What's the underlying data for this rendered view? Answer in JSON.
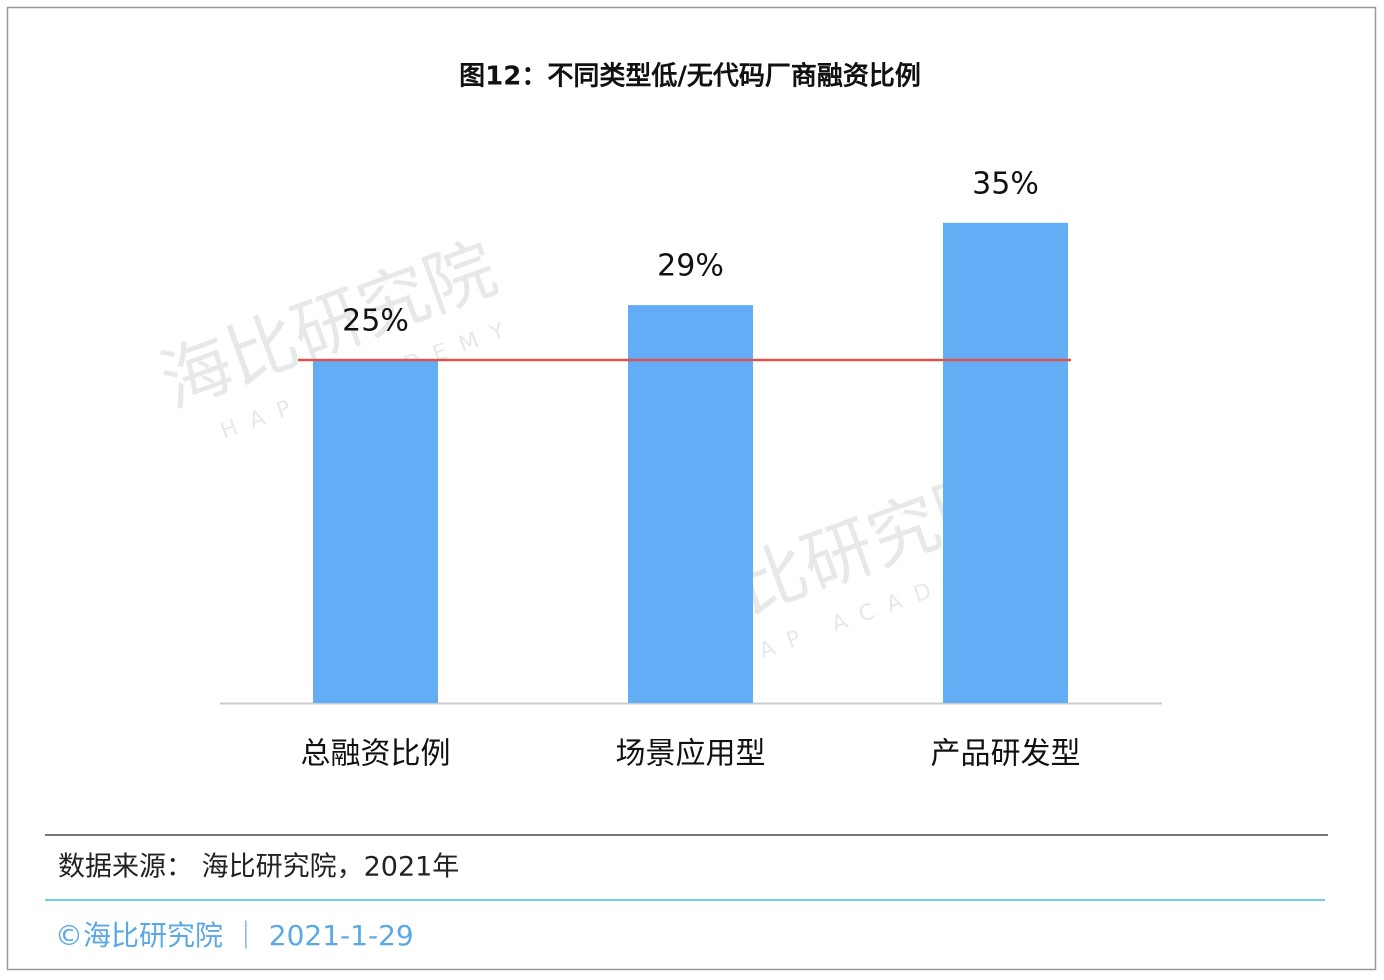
{
  "chart_data": {
    "type": "bar",
    "title": "图12：不同类型低/无代码厂商融资比例",
    "categories": [
      "总融资比例",
      "场景应用型",
      "产品研发型"
    ],
    "values": [
      25,
      29,
      35
    ],
    "value_labels": [
      "25%",
      "29%",
      "35%"
    ],
    "color": "#63acf6",
    "reference_line_color": "#d9534f",
    "ylim": [
      0,
      50
    ],
    "grid": false,
    "watermark": [
      "海比研究院",
      "HAP ACADEMY"
    ],
    "source": "数据来源： 海比研究院，2021年",
    "footer": "©海比研究院 ｜ 2021-1-29"
  }
}
